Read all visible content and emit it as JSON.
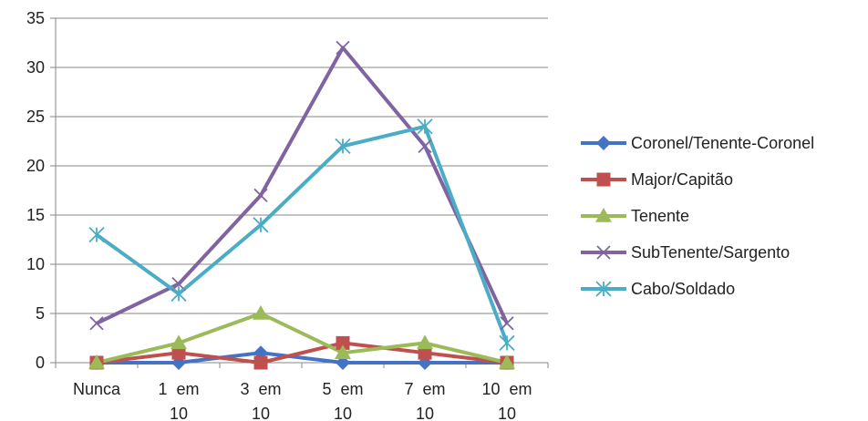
{
  "chart_data": {
    "type": "line",
    "categories": [
      [
        "Nunca"
      ],
      [
        "1  em",
        "10"
      ],
      [
        "3  em",
        "10"
      ],
      [
        "5  em",
        "10"
      ],
      [
        "7  em",
        "10"
      ],
      [
        "10  em",
        "10"
      ]
    ],
    "ylim": [
      0,
      35
    ],
    "yticks": [
      "0",
      "5",
      "10",
      "15",
      "20",
      "25",
      "30",
      "35"
    ],
    "grid": true,
    "legend_position": "right",
    "series": [
      {
        "name": "Coronel/Tenente-Coronel",
        "values": [
          0,
          0,
          1,
          0,
          0,
          0
        ],
        "color": "#4472C4",
        "marker": "diamond"
      },
      {
        "name": "Major/Capitão",
        "values": [
          0,
          1,
          0,
          2,
          1,
          0
        ],
        "color": "#C0504D",
        "marker": "square"
      },
      {
        "name": "Tenente",
        "values": [
          0,
          2,
          5,
          1,
          2,
          0
        ],
        "color": "#9BBB59",
        "marker": "triangle"
      },
      {
        "name": "SubTenente/Sargento",
        "values": [
          4,
          8,
          17,
          32,
          22,
          4
        ],
        "color": "#8064A2",
        "marker": "x"
      },
      {
        "name": "Cabo/Soldado",
        "values": [
          13,
          7,
          14,
          22,
          24,
          2
        ],
        "color": "#4BACC6",
        "marker": "star"
      }
    ]
  }
}
